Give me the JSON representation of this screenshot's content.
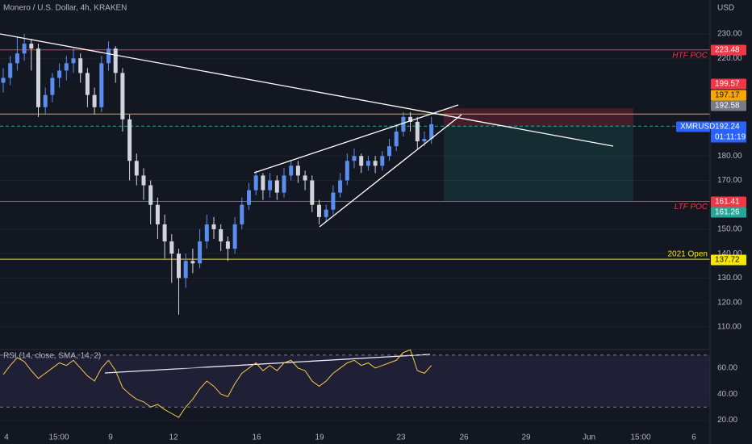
{
  "chart_data": {
    "type": "candlestick",
    "title": "Monero / U.S. Dollar, 4h, KRAKEN",
    "currency": "USD",
    "symbol": "XMRUSD",
    "countdown": "01:11:19",
    "ylim": [
      101.7,
      243.9
    ],
    "yticks": [
      {
        "value": 230,
        "label": "230.00"
      },
      {
        "value": 220,
        "label": "220.00"
      },
      {
        "value": 180,
        "label": "180.00"
      },
      {
        "value": 170,
        "label": "170.00"
      },
      {
        "value": 150,
        "label": "150.00"
      },
      {
        "value": 140,
        "label": "140.00"
      },
      {
        "value": 130,
        "label": "130.00"
      },
      {
        "value": 120,
        "label": "120.00"
      },
      {
        "value": 110,
        "label": "110.00"
      }
    ],
    "xlabels": [
      "4",
      "15:00",
      "9",
      "12",
      "16",
      "19",
      "23",
      "26",
      "29",
      "Jun",
      "15:00",
      "6"
    ],
    "up_color": "#5b8def",
    "down_color": "#d1d4dc",
    "candles": [
      [
        210,
        216,
        206,
        212
      ],
      [
        212,
        221,
        209,
        218
      ],
      [
        218,
        229,
        215,
        222
      ],
      [
        222,
        230,
        219,
        226
      ],
      [
        226,
        228,
        215,
        224
      ],
      [
        224,
        226,
        196,
        200
      ],
      [
        200,
        208,
        197,
        205
      ],
      [
        205,
        214,
        202,
        212
      ],
      [
        212,
        218,
        208,
        215
      ],
      [
        215,
        221,
        211,
        218
      ],
      [
        218,
        224,
        214,
        220
      ],
      [
        220,
        222,
        210,
        214
      ],
      [
        214,
        216,
        200,
        205
      ],
      [
        205,
        208,
        197,
        200
      ],
      [
        200,
        221,
        198,
        218
      ],
      [
        218,
        227,
        215,
        224
      ],
      [
        224,
        225,
        210,
        214
      ],
      [
        214,
        216,
        190,
        195
      ],
      [
        195,
        197,
        170,
        178
      ],
      [
        178,
        181,
        168,
        172
      ],
      [
        172,
        175,
        162,
        168
      ],
      [
        168,
        170,
        152,
        160
      ],
      [
        160,
        163,
        146,
        152
      ],
      [
        152,
        156,
        138,
        145
      ],
      [
        145,
        148,
        128,
        140
      ],
      [
        140,
        142,
        115,
        130
      ],
      [
        130,
        140,
        126,
        137
      ],
      [
        137,
        142,
        132,
        136
      ],
      [
        136,
        150,
        134,
        145
      ],
      [
        145,
        156,
        142,
        152
      ],
      [
        152,
        155,
        146,
        150
      ],
      [
        150,
        152,
        141,
        145
      ],
      [
        145,
        147,
        137,
        142
      ],
      [
        142,
        155,
        140,
        152
      ],
      [
        152,
        163,
        150,
        160
      ],
      [
        160,
        169,
        158,
        166
      ],
      [
        166,
        174,
        164,
        172
      ],
      [
        172,
        173,
        162,
        166
      ],
      [
        166,
        173,
        163,
        170
      ],
      [
        170,
        172,
        162,
        165
      ],
      [
        165,
        175,
        163,
        172
      ],
      [
        172,
        178,
        170,
        176
      ],
      [
        176,
        178,
        169,
        172
      ],
      [
        172,
        174,
        166,
        170
      ],
      [
        170,
        172,
        157,
        160
      ],
      [
        160,
        162,
        152,
        155
      ],
      [
        155,
        160,
        153,
        158
      ],
      [
        158,
        168,
        156,
        165
      ],
      [
        165,
        173,
        163,
        170
      ],
      [
        170,
        181,
        168,
        178
      ],
      [
        178,
        183,
        175,
        180
      ],
      [
        180,
        181,
        173,
        176
      ],
      [
        176,
        180,
        174,
        178
      ],
      [
        178,
        180,
        173,
        176
      ],
      [
        176,
        182,
        174,
        180
      ],
      [
        180,
        187,
        178,
        184
      ],
      [
        184,
        193,
        182,
        190
      ],
      [
        190,
        198,
        188,
        196
      ],
      [
        196,
        198,
        190,
        194
      ],
      [
        194,
        196,
        183,
        186
      ],
      [
        186,
        190,
        184,
        187
      ],
      [
        187,
        196,
        185,
        193
      ]
    ],
    "levels": [
      {
        "name": "HTF POC",
        "value": 223.48,
        "color": "#f23645"
      },
      {
        "value": 197.17,
        "color": "#f7a600"
      },
      {
        "value": 192.24,
        "color": "#22ab94",
        "dashed": true
      },
      {
        "name": "LTF POC",
        "value": 161.41,
        "color": "#f23645"
      },
      {
        "name": "2021 Open",
        "value": 137.72,
        "color": "#f7e600"
      }
    ],
    "tags": [
      {
        "value": 223.48,
        "color": "#f23645"
      },
      {
        "value": 199.57,
        "color": "#f23645"
      },
      {
        "value": 197.17,
        "color": "#f7a600"
      },
      {
        "value": 192.58,
        "color": "#787b86"
      },
      {
        "value": 192.24,
        "color": "#2962ff"
      },
      {
        "value": 161.41,
        "color": "#f23645"
      },
      {
        "value": 161.26,
        "color": "#26a69a"
      },
      {
        "value": 137.72,
        "color": "#f7e600"
      }
    ],
    "position": {
      "stop": 199.57,
      "entry": 192.24,
      "target": 161.26
    },
    "rsi": {
      "label": "RSI (14, close, SMA, 14, 2)",
      "color": "#f7c948",
      "ylim": [
        9,
        73
      ],
      "bands": [
        30,
        70
      ],
      "yticks": [
        {
          "value": 60,
          "label": "60.00"
        },
        {
          "value": 40,
          "label": "40.00"
        },
        {
          "value": 20,
          "label": "20.00"
        }
      ],
      "values": [
        55,
        62,
        68,
        65,
        58,
        52,
        56,
        60,
        64,
        62,
        66,
        60,
        54,
        50,
        60,
        66,
        58,
        45,
        40,
        36,
        34,
        30,
        32,
        28,
        25,
        22,
        30,
        36,
        44,
        50,
        46,
        40,
        38,
        48,
        56,
        60,
        64,
        58,
        62,
        58,
        64,
        66,
        60,
        58,
        50,
        46,
        50,
        56,
        60,
        64,
        66,
        62,
        64,
        60,
        62,
        64,
        66,
        72,
        74,
        58,
        56,
        62
      ]
    }
  }
}
